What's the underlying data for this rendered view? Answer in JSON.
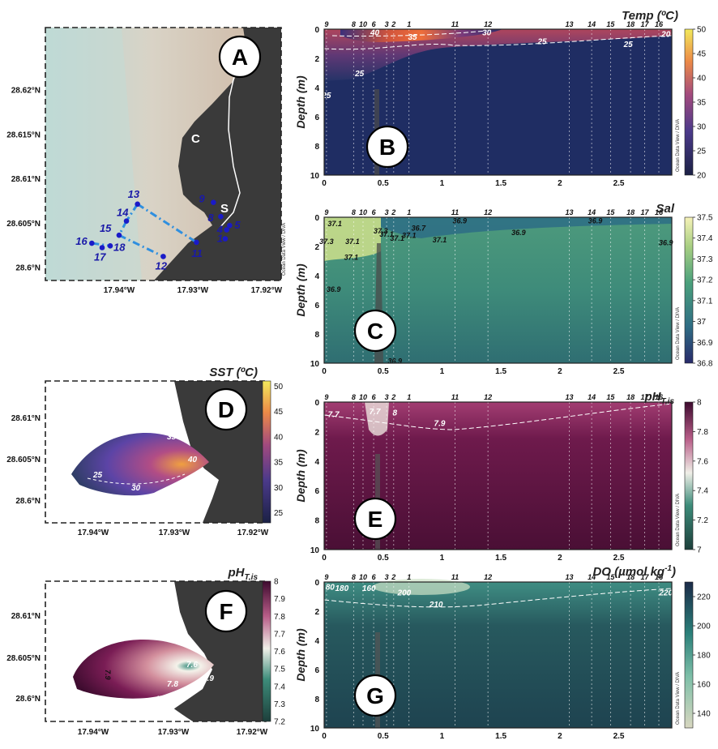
{
  "watermark": "Ocean Data View / DIVA",
  "chart_data": [
    {
      "panel": "A",
      "type": "scatter",
      "title": "",
      "xlabel": "",
      "ylabel": "",
      "xlim": [
        -17.95,
        -17.918
      ],
      "ylim": [
        28.5985,
        28.627
      ],
      "x_ticks": [
        -17.94,
        -17.93,
        -17.92
      ],
      "x_tick_labels": [
        "17.94°W",
        "17.93°W",
        "17.92°W"
      ],
      "y_ticks": [
        28.6,
        28.605,
        28.61,
        28.615,
        28.62
      ],
      "y_tick_labels": [
        "28.6°N",
        "28.605°N",
        "28.61°N",
        "28.615°N",
        "28.62°N"
      ],
      "place_labels": [
        "C",
        "S"
      ],
      "stations": [
        {
          "id": "1",
          "lon": -17.9256,
          "lat": 28.6032
        },
        {
          "id": "4",
          "lon": -17.9254,
          "lat": 28.6042
        },
        {
          "id": "5",
          "lon": -17.925,
          "lat": 28.6047
        },
        {
          "id": "8",
          "lon": -17.9262,
          "lat": 28.6057
        },
        {
          "id": "9",
          "lon": -17.9272,
          "lat": 28.6073
        },
        {
          "id": "11",
          "lon": -17.9295,
          "lat": 28.6028
        },
        {
          "id": "12",
          "lon": -17.934,
          "lat": 28.6012
        },
        {
          "id": "13",
          "lon": -17.9375,
          "lat": 28.6071
        },
        {
          "id": "14",
          "lon": -17.939,
          "lat": 28.6052
        },
        {
          "id": "15",
          "lon": -17.94,
          "lat": 28.6036
        },
        {
          "id": "16",
          "lon": -17.9437,
          "lat": 28.6027
        },
        {
          "id": "17",
          "lon": -17.9423,
          "lat": 28.6022
        },
        {
          "id": "18",
          "lon": -17.9412,
          "lat": 28.6024
        }
      ]
    },
    {
      "panel": "B",
      "type": "heatmap",
      "title": "Temp (ºC)",
      "xlabel": "",
      "ylabel": "Depth (m)",
      "xlim": [
        0,
        2.95
      ],
      "ylim": [
        10,
        0
      ],
      "x_ticks": [
        0,
        0.5,
        1,
        1.5,
        2,
        2.5
      ],
      "y_ticks": [
        0,
        2,
        4,
        6,
        8,
        10
      ],
      "colorbar": {
        "min": 20,
        "max": 50,
        "ticks": [
          20,
          25,
          30,
          35,
          40,
          45,
          50
        ]
      },
      "station_labels": [
        {
          "id": "9",
          "x": 0.02
        },
        {
          "id": "8",
          "x": 0.25
        },
        {
          "id": "10",
          "x": 0.33
        },
        {
          "id": "6",
          "x": 0.42
        },
        {
          "id": "3",
          "x": 0.53
        },
        {
          "id": "2",
          "x": 0.59
        },
        {
          "id": "1",
          "x": 0.72
        },
        {
          "id": "11",
          "x": 1.11
        },
        {
          "id": "12",
          "x": 1.39
        },
        {
          "id": "13",
          "x": 2.08
        },
        {
          "id": "14",
          "x": 2.27
        },
        {
          "id": "15",
          "x": 2.43
        },
        {
          "id": "18",
          "x": 2.6
        },
        {
          "id": "17",
          "x": 2.72
        },
        {
          "id": "16",
          "x": 2.84
        }
      ],
      "contour_labels": [
        {
          "text": "40",
          "x": 0.43,
          "y": 0.2
        },
        {
          "text": "35",
          "x": 0.75,
          "y": 0.5
        },
        {
          "text": "30",
          "x": 1.38,
          "y": 0.2
        },
        {
          "text": "25",
          "x": 1.85,
          "y": 0.8
        },
        {
          "text": "25",
          "x": 2.58,
          "y": 1.0
        },
        {
          "text": "25",
          "x": 0.3,
          "y": 3.0
        },
        {
          "text": "25",
          "x": 0.02,
          "y": 4.5
        },
        {
          "text": "20",
          "x": 2.9,
          "y": 0.3
        }
      ]
    },
    {
      "panel": "C",
      "type": "heatmap",
      "title": "Sal",
      "xlabel": "",
      "ylabel": "Depth (m)",
      "xlim": [
        0,
        2.95
      ],
      "ylim": [
        10,
        0
      ],
      "x_ticks": [
        0,
        0.5,
        1,
        1.5,
        2,
        2.5
      ],
      "y_ticks": [
        0,
        2,
        4,
        6,
        8,
        10
      ],
      "colorbar": {
        "min": 36.8,
        "max": 37.5,
        "ticks": [
          36.8,
          36.9,
          37,
          37.1,
          37.2,
          37.3,
          37.4,
          37.5
        ]
      },
      "station_labels": [
        {
          "id": "9",
          "x": 0.02
        },
        {
          "id": "8",
          "x": 0.25
        },
        {
          "id": "10",
          "x": 0.33
        },
        {
          "id": "6",
          "x": 0.42
        },
        {
          "id": "3",
          "x": 0.53
        },
        {
          "id": "2",
          "x": 0.59
        },
        {
          "id": "1",
          "x": 0.72
        },
        {
          "id": "11",
          "x": 1.11
        },
        {
          "id": "12",
          "x": 1.39
        },
        {
          "id": "13",
          "x": 2.08
        },
        {
          "id": "14",
          "x": 2.27
        },
        {
          "id": "15",
          "x": 2.43
        },
        {
          "id": "18",
          "x": 2.6
        },
        {
          "id": "17",
          "x": 2.72
        },
        {
          "id": "16",
          "x": 2.84
        }
      ],
      "contour_labels": [
        {
          "text": "37.1",
          "x": 0.09,
          "y": 0.4
        },
        {
          "text": "37.3",
          "x": 0.48,
          "y": 0.9
        },
        {
          "text": "37.1",
          "x": 0.53,
          "y": 1.1
        },
        {
          "text": "37.1",
          "x": 0.62,
          "y": 1.4
        },
        {
          "text": "36.7",
          "x": 0.8,
          "y": 0.7
        },
        {
          "text": "37.1",
          "x": 0.72,
          "y": 1.2
        },
        {
          "text": "37.1",
          "x": 0.98,
          "y": 1.5
        },
        {
          "text": "36.9",
          "x": 1.15,
          "y": 0.2
        },
        {
          "text": "36.9",
          "x": 1.65,
          "y": 1.0
        },
        {
          "text": "36.9",
          "x": 2.3,
          "y": 0.2
        },
        {
          "text": "36.9",
          "x": 2.9,
          "y": 1.7
        },
        {
          "text": "37.3",
          "x": 0.02,
          "y": 1.6
        },
        {
          "text": "37.1",
          "x": 0.24,
          "y": 1.6
        },
        {
          "text": "37.1",
          "x": 0.23,
          "y": 2.7
        },
        {
          "text": "36.9",
          "x": 0.08,
          "y": 4.9
        },
        {
          "text": "36.9",
          "x": 0.6,
          "y": 9.8
        }
      ]
    },
    {
      "panel": "D",
      "type": "heatmap",
      "title": "SST (ºC)",
      "xlabel": "",
      "ylabel": "",
      "x_tick_labels": [
        "17.94°W",
        "17.93°W",
        "17.92°W"
      ],
      "y_tick_labels": [
        "28.6°N",
        "28.605°N",
        "28.61°N"
      ],
      "colorbar": {
        "min": 23,
        "max": 51,
        "ticks": [
          25,
          30,
          35,
          40,
          45,
          50
        ]
      },
      "contour_labels": [
        "25",
        "30",
        "35",
        "40"
      ]
    },
    {
      "panel": "E",
      "type": "heatmap",
      "title": "pHT,is",
      "title_main": "pH",
      "title_sub": "T,is",
      "xlabel": "",
      "ylabel": "Depth (m)",
      "xlim": [
        0,
        2.95
      ],
      "ylim": [
        10,
        0
      ],
      "x_ticks": [
        0,
        0.5,
        1,
        1.5,
        2,
        2.5
      ],
      "y_ticks": [
        0,
        2,
        4,
        6,
        8,
        10
      ],
      "colorbar": {
        "min": 7.0,
        "max": 8.0,
        "ticks": [
          7,
          7.2,
          7.4,
          7.6,
          7.8,
          8
        ]
      },
      "station_labels": [
        {
          "id": "9",
          "x": 0.02
        },
        {
          "id": "8",
          "x": 0.25
        },
        {
          "id": "10",
          "x": 0.33
        },
        {
          "id": "6",
          "x": 0.42
        },
        {
          "id": "3",
          "x": 0.53
        },
        {
          "id": "2",
          "x": 0.59
        },
        {
          "id": "1",
          "x": 0.72
        },
        {
          "id": "11",
          "x": 1.11
        },
        {
          "id": "12",
          "x": 1.39
        },
        {
          "id": "13",
          "x": 2.08
        },
        {
          "id": "14",
          "x": 2.27
        },
        {
          "id": "15",
          "x": 2.43
        },
        {
          "id": "18",
          "x": 2.6
        },
        {
          "id": "17",
          "x": 2.72
        },
        {
          "id": "16",
          "x": 2.84
        }
      ],
      "contour_labels": [
        {
          "text": "7.7",
          "x": 0.08,
          "y": 0.8
        },
        {
          "text": "7.7",
          "x": 0.43,
          "y": 0.6
        },
        {
          "text": "8",
          "x": 0.6,
          "y": 0.7
        },
        {
          "text": "7.9",
          "x": 0.98,
          "y": 1.4
        }
      ]
    },
    {
      "panel": "F",
      "type": "heatmap",
      "title": "pHT,is",
      "title_main": "pH",
      "title_sub": "T,is",
      "xlabel": "",
      "ylabel": "",
      "x_tick_labels": [
        "17.94°W",
        "17.93°W",
        "17.92°W"
      ],
      "y_tick_labels": [
        "28.6°N",
        "28.605°N",
        "28.61°N"
      ],
      "colorbar": {
        "min": 7.2,
        "max": 8.0,
        "ticks": [
          7.2,
          7.3,
          7.4,
          7.5,
          7.6,
          7.7,
          7.8,
          7.9,
          8
        ]
      },
      "contour_labels": [
        "7.9",
        "7.8",
        "7.6",
        "7.9"
      ]
    },
    {
      "panel": "G",
      "type": "heatmap",
      "title": "DO (µmol kg-1)",
      "title_main": "DO (µmol kg",
      "title_sup": "-1",
      "title_end": ")",
      "xlabel": "",
      "ylabel": "Depth (m)",
      "xlim": [
        0,
        2.95
      ],
      "ylim": [
        10,
        0
      ],
      "x_ticks": [
        0,
        0.5,
        1,
        1.5,
        2,
        2.5
      ],
      "y_ticks": [
        0,
        2,
        4,
        6,
        8,
        10
      ],
      "colorbar": {
        "min": 130,
        "max": 230,
        "ticks": [
          140,
          160,
          180,
          200,
          220
        ]
      },
      "station_labels": [
        {
          "id": "9",
          "x": 0.02
        },
        {
          "id": "8",
          "x": 0.25
        },
        {
          "id": "10",
          "x": 0.33
        },
        {
          "id": "6",
          "x": 0.42
        },
        {
          "id": "3",
          "x": 0.53
        },
        {
          "id": "2",
          "x": 0.59
        },
        {
          "id": "1",
          "x": 0.72
        },
        {
          "id": "11",
          "x": 1.11
        },
        {
          "id": "12",
          "x": 1.39
        },
        {
          "id": "13",
          "x": 2.08
        },
        {
          "id": "14",
          "x": 2.27
        },
        {
          "id": "15",
          "x": 2.43
        },
        {
          "id": "18",
          "x": 2.6
        },
        {
          "id": "17",
          "x": 2.72
        },
        {
          "id": "16",
          "x": 2.84
        }
      ],
      "contour_labels": [
        {
          "text": "80",
          "x": 0.05,
          "y": 0.3
        },
        {
          "text": "180",
          "x": 0.15,
          "y": 0.4
        },
        {
          "text": "160",
          "x": 0.38,
          "y": 0.4
        },
        {
          "text": "200",
          "x": 0.68,
          "y": 0.7
        },
        {
          "text": "210",
          "x": 0.95,
          "y": 1.5
        },
        {
          "text": "220",
          "x": 2.9,
          "y": 0.7
        }
      ]
    }
  ]
}
